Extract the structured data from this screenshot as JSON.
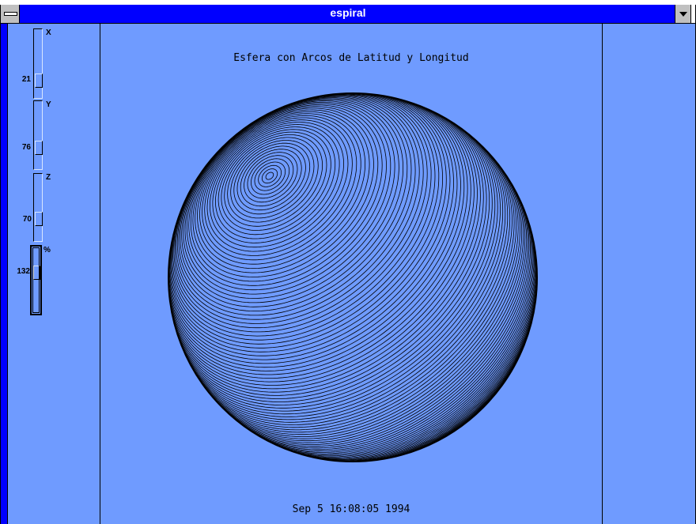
{
  "window": {
    "title": "espiral",
    "background_color": "#6f9bff",
    "titlebar_color": "#0000ff"
  },
  "sliders": [
    {
      "axis": "X",
      "value": "21"
    },
    {
      "axis": "Y",
      "value": "76"
    },
    {
      "axis": "Z",
      "value": "70"
    },
    {
      "axis": "%",
      "value": "132"
    }
  ],
  "plot": {
    "title": "Esfera con Arcos de Latitud y Longitud",
    "timestamp": "Sep  5 16:08:05 1994",
    "line_color": "#000000"
  },
  "icons": {
    "system_menu": "system-menu-icon",
    "minimize": "minimize-arrow-icon"
  }
}
